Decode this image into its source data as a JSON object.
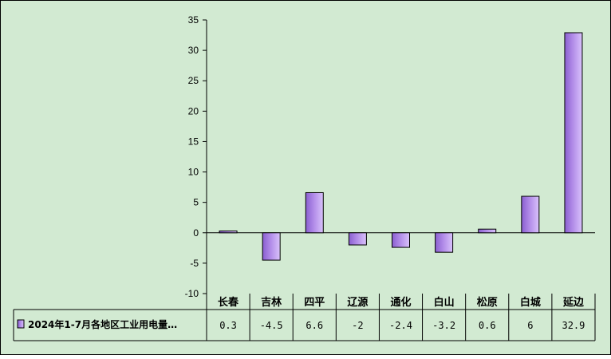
{
  "chart_data": {
    "type": "bar",
    "categories": [
      "长春",
      "吉林",
      "四平",
      "辽源",
      "通化",
      "白山",
      "松原",
      "白城",
      "延边"
    ],
    "series": [
      {
        "name": "2024年1-7月各地区工业用电量…",
        "values": [
          0.3,
          -4.5,
          6.6,
          -2,
          -2.4,
          -3.2,
          0.6,
          6,
          32.9
        ],
        "labels": [
          "0.3",
          "-4.5",
          "6.6",
          "-2",
          "-2.4",
          "-3.2",
          "0.6",
          "6",
          "32.9"
        ],
        "color": "#b18be8"
      }
    ],
    "ylim": [
      -10,
      35
    ],
    "yticks": [
      "35",
      "30",
      "25",
      "20",
      "15",
      "10",
      "5",
      "0",
      "-5",
      "-10"
    ],
    "ytick_values": [
      35,
      30,
      25,
      20,
      15,
      10,
      5,
      0,
      -5,
      -10
    ],
    "grid": false,
    "legend": "data-table",
    "background_color": "#d2ead2"
  }
}
